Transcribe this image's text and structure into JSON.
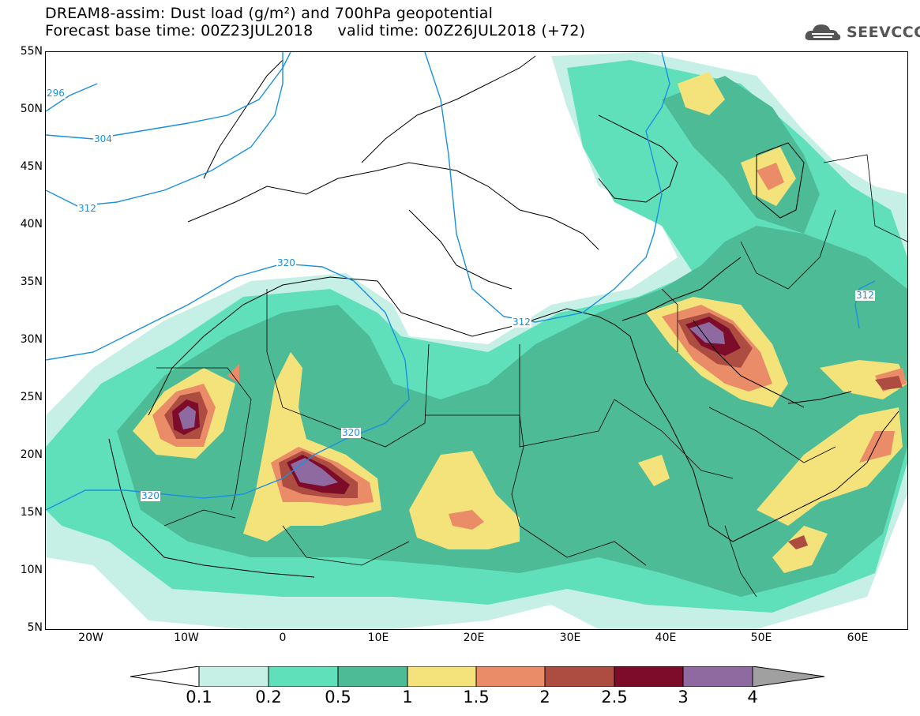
{
  "header": {
    "title_line1": "DREAM8-assim: Dust load (g/m²) and 700hPa geopotential",
    "title_line2": "Forecast base time: 00Z23JUL2018     valid time: 00Z26JUL2018 (+72)",
    "logo_text": "SEEVCCC"
  },
  "axes": {
    "y_labels": [
      "55N",
      "50N",
      "45N",
      "40N",
      "35N",
      "30N",
      "25N",
      "20N",
      "15N",
      "10N",
      "5N"
    ],
    "x_labels": [
      "20W",
      "10W",
      "0",
      "10E",
      "20E",
      "30E",
      "40E",
      "50E",
      "60E"
    ],
    "lon_range": [
      -25,
      65
    ],
    "lat_range": [
      5,
      55
    ]
  },
  "contours": {
    "unit_note": "700hPa geopotential (dam)",
    "labels": [
      "296",
      "304",
      "312",
      "320",
      "320",
      "320",
      "312",
      "312"
    ],
    "color": "#1a8fe0"
  },
  "colorbar": {
    "levels": [
      "0.1",
      "0.2",
      "0.5",
      "1",
      "1.5",
      "2",
      "2.5",
      "3",
      "4"
    ],
    "colors": [
      "#c6f0e5",
      "#5fe0ba",
      "#4dbb95",
      "#f4e37a",
      "#eb8c68",
      "#ad4d41",
      "#7d0c2a",
      "#8e6aa1"
    ],
    "under_color": "#ffffff",
    "over_color": "#a0a0a0"
  }
}
